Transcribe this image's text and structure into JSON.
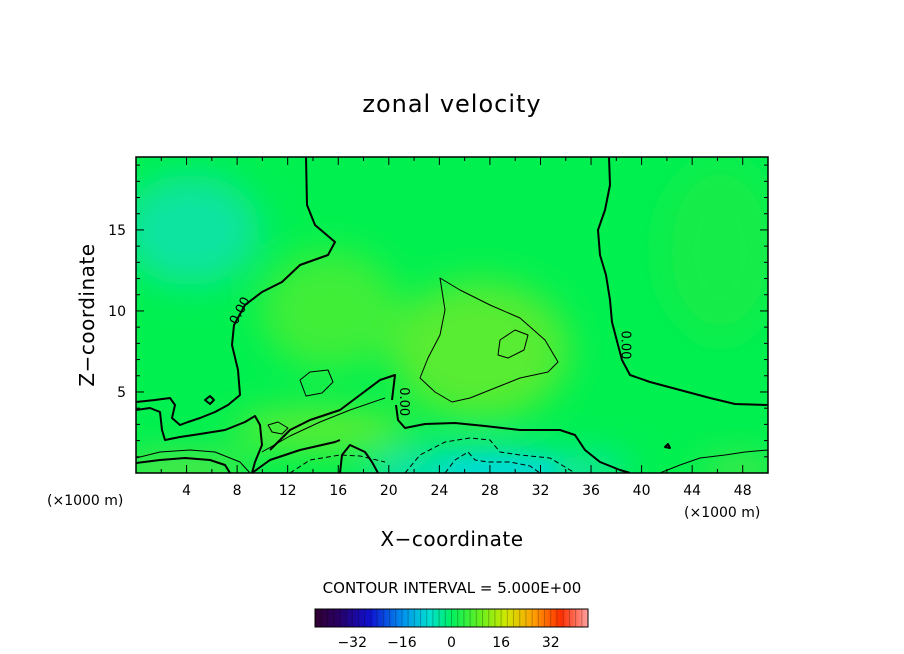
{
  "chart_data": {
    "type": "heatmap",
    "title": "zonal velocity",
    "xlabel": "X−coordinate",
    "ylabel": "Z−coordinate",
    "x_unit_left": "(×1000 m)",
    "x_unit_right": "(×1000 m)",
    "xlim": [
      0,
      50
    ],
    "ylim": [
      0,
      19.5
    ],
    "xticks": [
      4,
      8,
      12,
      16,
      20,
      24,
      28,
      32,
      36,
      40,
      44,
      48
    ],
    "xtick_labels": [
      "4",
      "8",
      "12",
      "16",
      "20",
      "24",
      "28",
      "32",
      "36",
      "40",
      "44",
      "48"
    ],
    "yticks": [
      5,
      10,
      15
    ],
    "ytick_labels": [
      "5",
      "10",
      "15"
    ],
    "contour_interval_label": "CONTOUR INTERVAL = 5.000E+00",
    "colorbar": {
      "range": [
        -44,
        44
      ],
      "ticks": [
        -32,
        -16,
        0,
        16,
        32
      ],
      "tick_labels": [
        "−32",
        "−16",
        "0",
        "16",
        "32"
      ]
    },
    "zero_contour_labels": [
      {
        "text": "0.00",
        "x": 8.5,
        "y": 9.9,
        "rotate": -62
      },
      {
        "text": "0.00",
        "x": 20.9,
        "y": 4.4,
        "rotate": 90
      },
      {
        "text": "0.00",
        "x": 38.4,
        "y": 7.9,
        "rotate": 90
      }
    ],
    "colors": {
      "background_field": "#00f050",
      "cyan_region": "#00e6a0",
      "yellow_green_region": "#90e040",
      "frame": "#000000"
    }
  }
}
